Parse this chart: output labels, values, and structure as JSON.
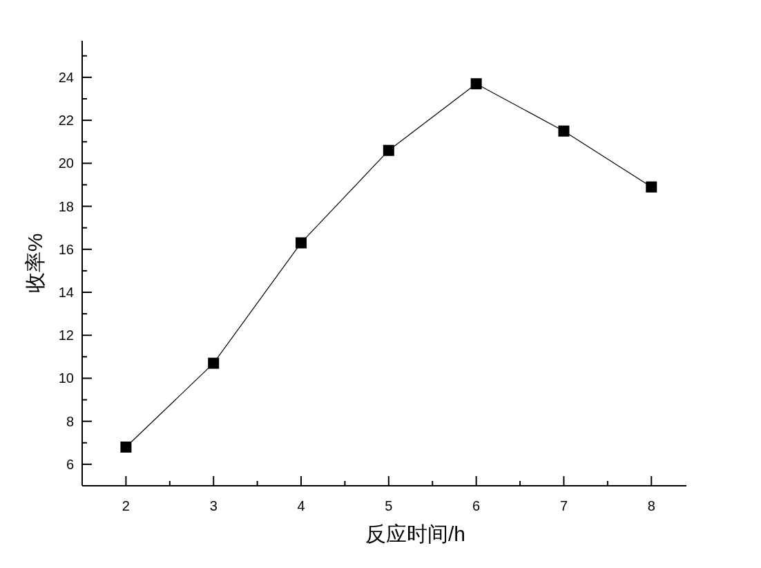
{
  "chart_data": {
    "type": "line",
    "xlabel": "反应时间/h",
    "ylabel": "收率%",
    "x": [
      2,
      3,
      4,
      5,
      6,
      7,
      8
    ],
    "series": [
      {
        "color": "#000000",
        "values": [
          6.8,
          10.7,
          16.3,
          20.6,
          23.7,
          21.5,
          18.9
        ]
      }
    ],
    "xlim": [
      1.5,
      8.4
    ],
    "ylim": [
      5,
      25.7
    ],
    "xticks": [
      2,
      {
        "value": 2.5,
        "label": null
      },
      3,
      {
        "value": 3.5,
        "label": null
      },
      4,
      {
        "value": 4.5,
        "label": null
      },
      5,
      {
        "value": 5.5,
        "label": null
      },
      6,
      {
        "value": 6.5,
        "label": null
      },
      7,
      {
        "value": 7.5,
        "label": null
      },
      8
    ],
    "yticks": [
      6,
      {
        "value": 7,
        "label": null
      },
      8,
      {
        "value": 9,
        "label": null
      },
      10,
      {
        "value": 11,
        "label": null
      },
      12,
      {
        "value": 13,
        "label": null
      },
      14,
      {
        "value": 15,
        "label": null
      },
      16,
      {
        "value": 17,
        "label": null
      },
      18,
      {
        "value": 19,
        "label": null
      },
      20,
      {
        "value": 21,
        "label": null
      },
      22,
      {
        "value": 23,
        "label": null
      },
      24,
      {
        "value": 25,
        "label": null
      }
    ],
    "marker": "square",
    "line_style": "solid"
  }
}
